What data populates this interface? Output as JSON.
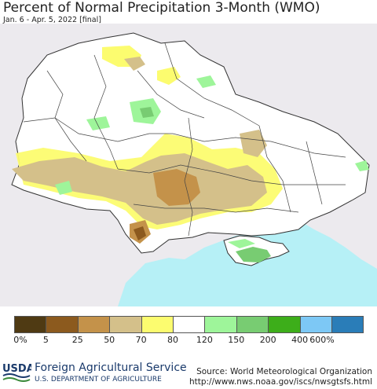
{
  "header": {
    "title": "Percent of Normal Precipitation 3-Month (WMO)",
    "subtitle": "Jan. 6 - Apr. 5, 2022 [final]"
  },
  "legend": {
    "labels": [
      "0%",
      "5",
      "25",
      "50",
      "70",
      "80",
      "120",
      "150",
      "200",
      "400",
      "600%"
    ],
    "colors": [
      "#4f3a13",
      "#8c5a1e",
      "#c4924a",
      "#d4c08a",
      "#fcfc6f",
      "#ffffff",
      "#9ef59a",
      "#78cc72",
      "#3dae1a",
      "#7dc8f5",
      "#2a7db8"
    ]
  },
  "colors": {
    "background_land": "#eceaee",
    "sea": "#b6f0f6",
    "usda_blue": "#1a3a6b"
  },
  "footer": {
    "agency": "Foreign Agricultural Service",
    "department": "U.S. DEPARTMENT OF AGRICULTURE",
    "logo_text": "USDA",
    "source_line1": "Source: World Meteorological Organization",
    "source_line2": "http://www.nws.noaa.gov/iscs/nwsgtsfs.html"
  }
}
